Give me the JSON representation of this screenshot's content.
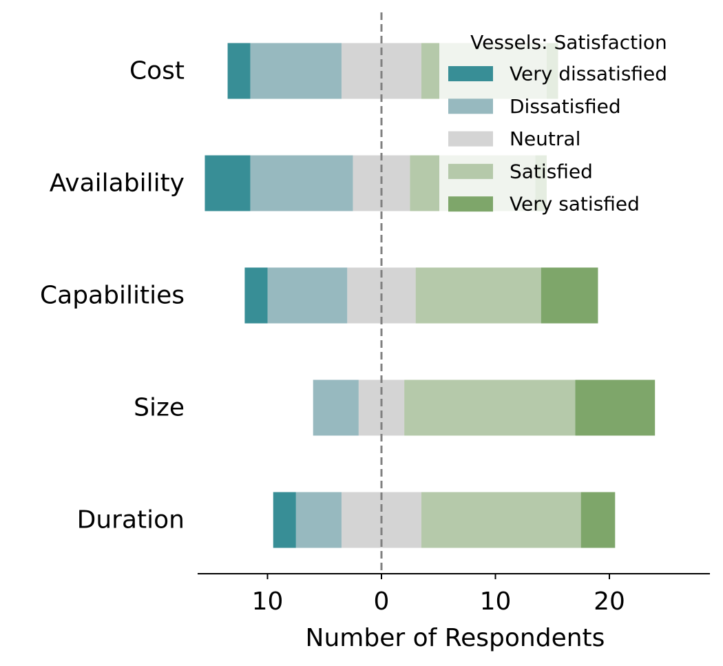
{
  "chart_data": {
    "type": "bar",
    "orientation": "horizontal-diverging",
    "categories": [
      "Cost",
      "Availability",
      "Capabilities",
      "Size",
      "Duration"
    ],
    "series": [
      {
        "name": "Very dissatisfied",
        "color": "#388e96",
        "values": [
          2,
          4,
          2,
          0,
          2
        ]
      },
      {
        "name": "Dissatisfied",
        "color": "#97b9bf",
        "values": [
          8,
          9,
          7,
          4,
          4
        ]
      },
      {
        "name": "Neutral",
        "color": "#d4d4d4",
        "values": [
          7,
          5,
          6,
          4,
          7
        ]
      },
      {
        "name": "Satisfied",
        "color": "#b5c9aa",
        "values": [
          11,
          11,
          11,
          15,
          14
        ]
      },
      {
        "name": "Very satisfied",
        "color": "#7ea66a",
        "values": [
          1,
          1,
          5,
          7,
          3
        ]
      }
    ],
    "xlabel": "Number of Respondents",
    "xticks": [
      -10,
      0,
      10,
      20
    ],
    "xtick_labels": [
      "10",
      "0",
      "10",
      "20"
    ],
    "xlim": [
      -16,
      28.5
    ],
    "zero_line": "dashed",
    "legend": {
      "title": "Vessels: Satisfaction",
      "placement": "top-right"
    },
    "grid": false
  }
}
